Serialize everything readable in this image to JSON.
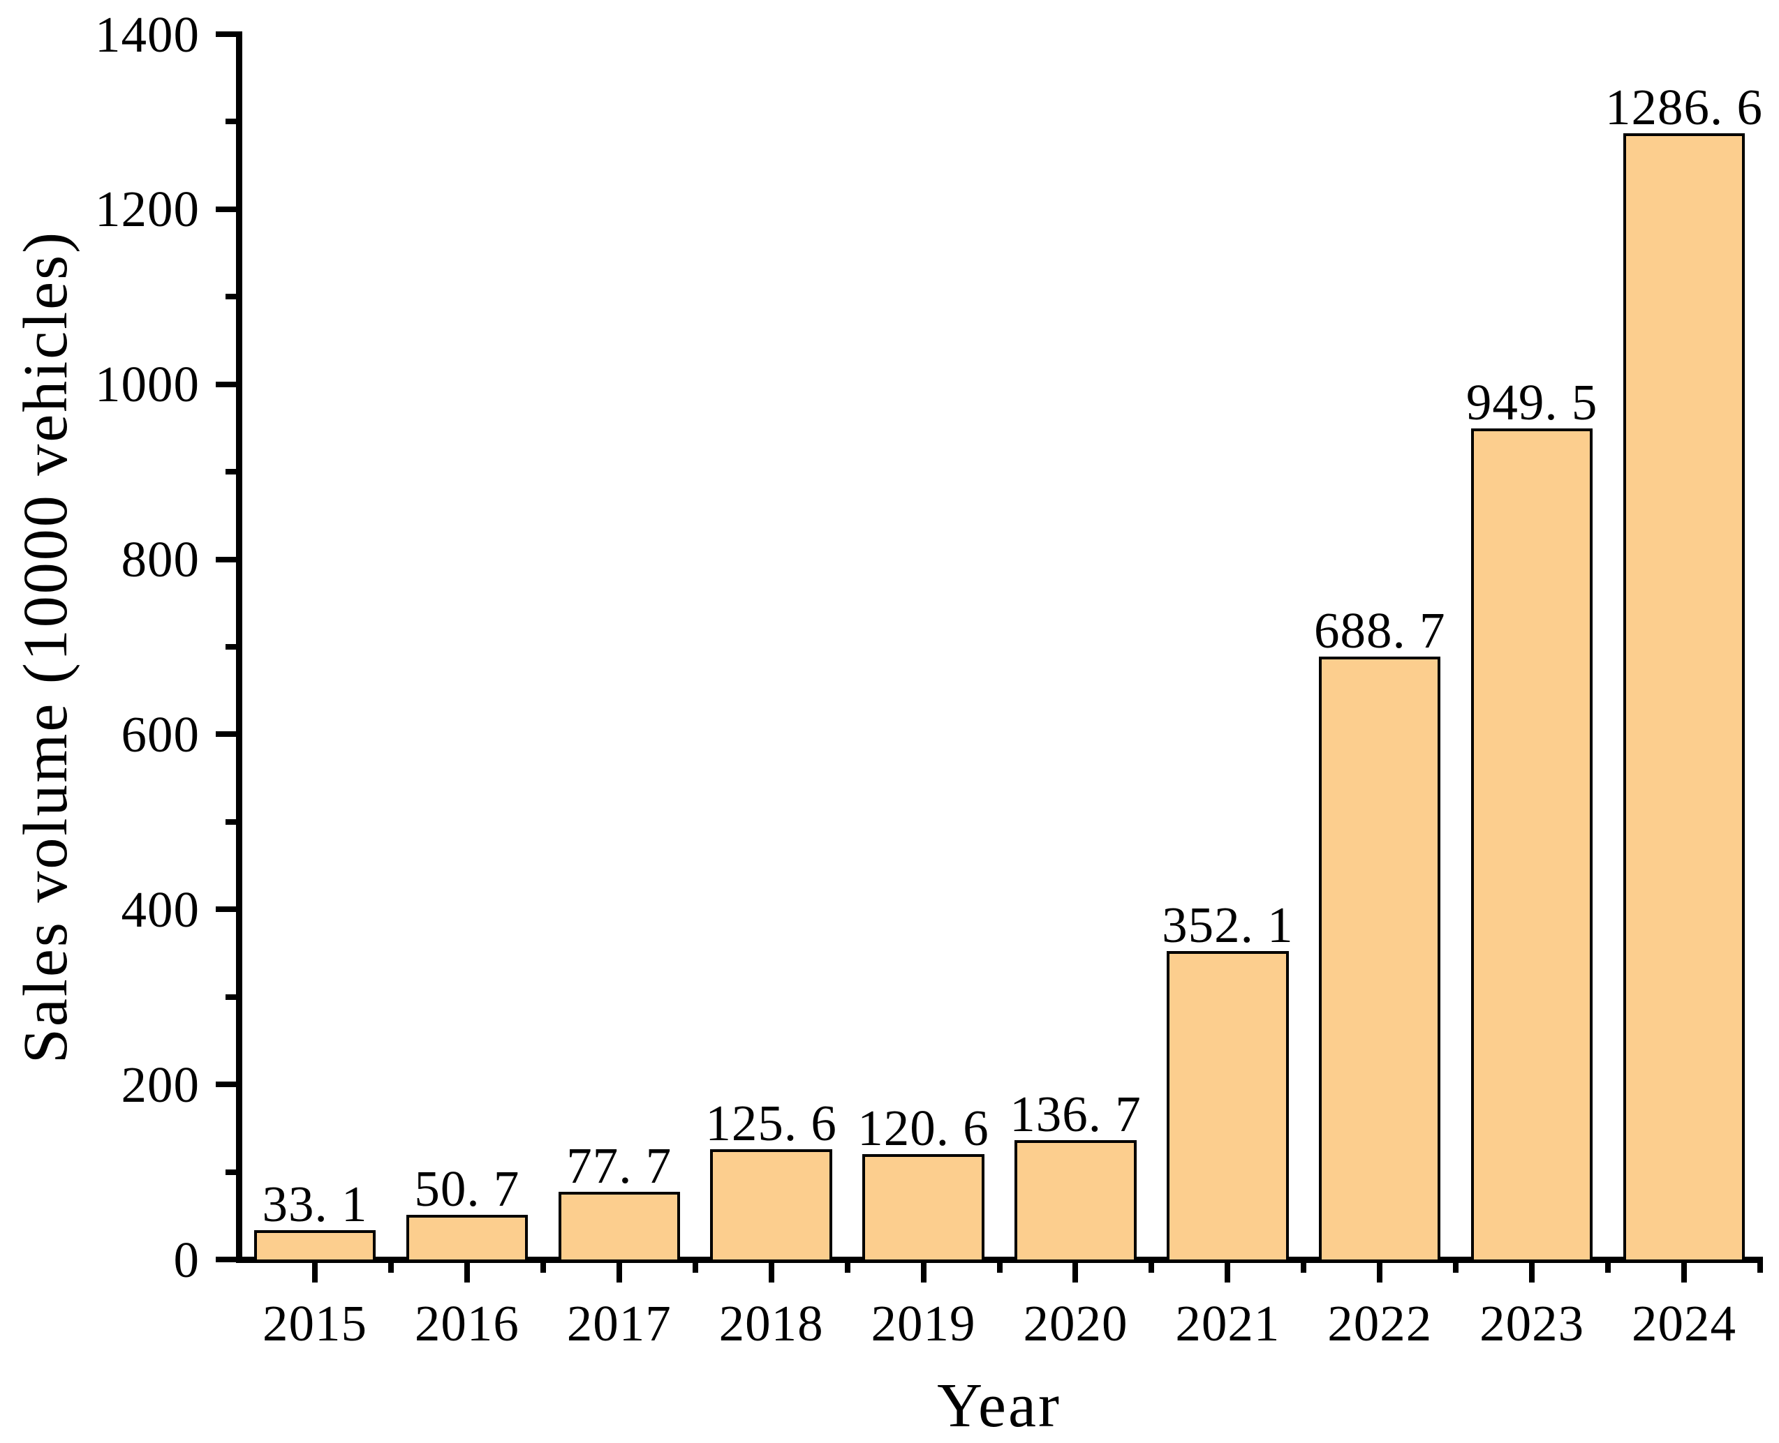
{
  "chart_data": {
    "type": "bar",
    "title": "",
    "xlabel": "Year",
    "ylabel": "Sales volume (10000 vehicles)",
    "categories": [
      "2015",
      "2016",
      "2017",
      "2018",
      "2019",
      "2020",
      "2021",
      "2022",
      "2023",
      "2024"
    ],
    "values": [
      33.1,
      50.7,
      77.7,
      125.6,
      120.6,
      136.7,
      352.1,
      688.7,
      949.5,
      1286.6
    ],
    "value_labels": [
      "33. 1",
      "50. 7",
      "77. 7",
      "125. 6",
      "120. 6",
      "136. 7",
      "352. 1",
      "688. 7",
      "949. 5",
      "1286. 6"
    ],
    "ylim": [
      0,
      1400
    ],
    "y_major_ticks": [
      0,
      200,
      400,
      600,
      800,
      1000,
      1200,
      1400
    ],
    "y_major_tick_labels": [
      "0",
      "200",
      "400",
      "600",
      "800",
      "1000",
      "1200",
      "1400"
    ],
    "y_minor_step": 100,
    "x_minor_ticks_at_category_boundaries": true,
    "grid": "off",
    "legend": "none",
    "bar_width_fraction": 0.8,
    "colors": {
      "bar_fill": "#FCCE8E",
      "bar_edge": "#000000",
      "axis": "#000000",
      "text": "#000000",
      "background": "#FFFFFF"
    }
  }
}
